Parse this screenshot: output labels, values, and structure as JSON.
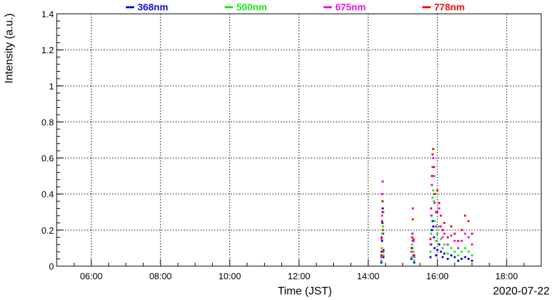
{
  "chart_data": {
    "type": "scatter",
    "title": "",
    "xlabel": "Time (JST)",
    "ylabel": "Intensity (a.u.)",
    "date_label": "2020-07-22",
    "x_unit": "hours (JST)",
    "xlim": [
      5.0,
      19.0
    ],
    "ylim": [
      0,
      1.4
    ],
    "x_ticks": [
      6,
      8,
      10,
      12,
      14,
      16,
      18
    ],
    "x_tick_labels": [
      "06:00",
      "08:00",
      "10:00",
      "12:00",
      "14:00",
      "16:00",
      "18:00"
    ],
    "y_ticks": [
      0,
      0.2,
      0.4,
      0.6,
      0.8,
      1.0,
      1.2,
      1.4
    ],
    "y_tick_labels": [
      "0",
      "0.2",
      "0.4",
      "0.6",
      "0.8",
      "1",
      "1.2",
      "1.4"
    ],
    "grid": true,
    "legend_position": "top",
    "series": [
      {
        "name": "368nm",
        "color": "#1010dd",
        "points": [
          [
            14.38,
            0.02
          ],
          [
            14.39,
            0.08
          ],
          [
            14.4,
            0.14
          ],
          [
            14.41,
            0.24
          ],
          [
            14.42,
            0.32
          ],
          [
            14.43,
            0.18
          ],
          [
            14.44,
            0.05
          ],
          [
            15.25,
            0.04
          ],
          [
            15.27,
            0.1
          ],
          [
            15.29,
            0.14
          ],
          [
            15.31,
            0.06
          ],
          [
            15.33,
            0.02
          ],
          [
            15.8,
            0.05
          ],
          [
            15.82,
            0.12
          ],
          [
            15.84,
            0.2
          ],
          [
            15.86,
            0.25
          ],
          [
            15.88,
            0.22
          ],
          [
            15.9,
            0.16
          ],
          [
            15.92,
            0.1
          ],
          [
            15.96,
            0.06
          ],
          [
            16.0,
            0.09
          ],
          [
            16.05,
            0.12
          ],
          [
            16.1,
            0.08
          ],
          [
            16.15,
            0.05
          ],
          [
            16.2,
            0.07
          ],
          [
            16.3,
            0.04
          ],
          [
            16.4,
            0.06
          ],
          [
            16.5,
            0.05
          ],
          [
            16.6,
            0.03
          ],
          [
            16.7,
            0.04
          ],
          [
            16.8,
            0.05
          ],
          [
            16.9,
            0.04
          ],
          [
            17.0,
            0.03
          ]
        ]
      },
      {
        "name": "500nm",
        "color": "#11ee11",
        "points": [
          [
            14.38,
            0.03
          ],
          [
            14.39,
            0.1
          ],
          [
            14.4,
            0.18
          ],
          [
            14.41,
            0.3
          ],
          [
            14.42,
            0.36
          ],
          [
            14.43,
            0.22
          ],
          [
            14.44,
            0.06
          ],
          [
            15.25,
            0.05
          ],
          [
            15.27,
            0.12
          ],
          [
            15.29,
            0.18
          ],
          [
            15.31,
            0.08
          ],
          [
            15.33,
            0.03
          ],
          [
            15.8,
            0.08
          ],
          [
            15.82,
            0.18
          ],
          [
            15.84,
            0.28
          ],
          [
            15.86,
            0.38
          ],
          [
            15.88,
            0.42
          ],
          [
            15.9,
            0.36
          ],
          [
            15.92,
            0.25
          ],
          [
            15.96,
            0.14
          ],
          [
            16.0,
            0.18
          ],
          [
            16.05,
            0.22
          ],
          [
            16.1,
            0.15
          ],
          [
            16.15,
            0.1
          ],
          [
            16.2,
            0.12
          ],
          [
            16.3,
            0.07
          ],
          [
            16.4,
            0.1
          ],
          [
            16.5,
            0.08
          ],
          [
            16.6,
            0.06
          ],
          [
            16.7,
            0.08
          ],
          [
            16.8,
            0.1
          ],
          [
            16.9,
            0.08
          ],
          [
            17.0,
            0.06
          ]
        ]
      },
      {
        "name": "675nm",
        "color": "#ee11ee",
        "points": [
          [
            14.38,
            0.05
          ],
          [
            14.39,
            0.15
          ],
          [
            14.4,
            0.28
          ],
          [
            14.41,
            0.4
          ],
          [
            14.42,
            0.47
          ],
          [
            14.43,
            0.3
          ],
          [
            14.44,
            0.08
          ],
          [
            15.25,
            0.08
          ],
          [
            15.27,
            0.18
          ],
          [
            15.29,
            0.32
          ],
          [
            15.31,
            0.14
          ],
          [
            15.33,
            0.05
          ],
          [
            15.8,
            0.12
          ],
          [
            15.82,
            0.28
          ],
          [
            15.84,
            0.45
          ],
          [
            15.86,
            0.55
          ],
          [
            15.88,
            0.6
          ],
          [
            15.9,
            0.5
          ],
          [
            15.92,
            0.35
          ],
          [
            15.96,
            0.22
          ],
          [
            16.0,
            0.3
          ],
          [
            16.05,
            0.32
          ],
          [
            16.1,
            0.22
          ],
          [
            16.15,
            0.16
          ],
          [
            16.2,
            0.18
          ],
          [
            16.3,
            0.12
          ],
          [
            16.4,
            0.17
          ],
          [
            16.5,
            0.14
          ],
          [
            16.6,
            0.1
          ],
          [
            16.7,
            0.14
          ],
          [
            16.8,
            0.18
          ],
          [
            16.9,
            0.16
          ],
          [
            17.0,
            0.12
          ]
        ]
      },
      {
        "name": "778nm",
        "color": "#ee1111",
        "points": [
          [
            14.38,
            0.06
          ],
          [
            14.39,
            0.16
          ],
          [
            14.4,
            0.25
          ],
          [
            14.41,
            0.36
          ],
          [
            14.42,
            0.3
          ],
          [
            14.43,
            0.2
          ],
          [
            14.44,
            0.09
          ],
          [
            15.25,
            0.1
          ],
          [
            15.27,
            0.16
          ],
          [
            15.29,
            0.26
          ],
          [
            15.31,
            0.15
          ],
          [
            15.33,
            0.06
          ],
          [
            15.8,
            0.15
          ],
          [
            15.82,
            0.32
          ],
          [
            15.84,
            0.5
          ],
          [
            15.86,
            0.62
          ],
          [
            15.88,
            0.65
          ],
          [
            15.9,
            0.55
          ],
          [
            15.92,
            0.4
          ],
          [
            15.96,
            0.3
          ],
          [
            16.0,
            0.42
          ],
          [
            16.05,
            0.35
          ],
          [
            16.1,
            0.28
          ],
          [
            16.15,
            0.2
          ],
          [
            16.2,
            0.24
          ],
          [
            16.3,
            0.16
          ],
          [
            16.4,
            0.22
          ],
          [
            16.5,
            0.18
          ],
          [
            16.6,
            0.14
          ],
          [
            16.7,
            0.2
          ],
          [
            16.8,
            0.28
          ],
          [
            16.9,
            0.25
          ],
          [
            17.0,
            0.18
          ]
        ]
      }
    ]
  }
}
